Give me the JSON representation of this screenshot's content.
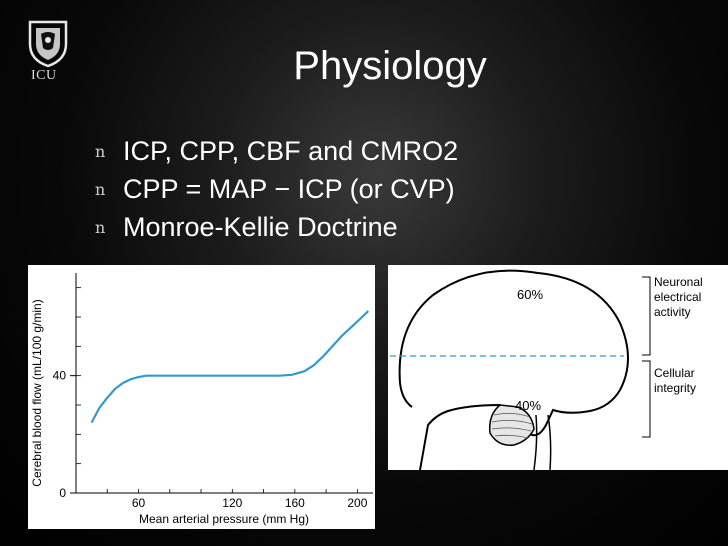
{
  "logo": {
    "text": "ICU"
  },
  "title": "Physiology",
  "bullets": [
    {
      "marker": "n",
      "text": " ICP, CPP, CBF and CMRO2"
    },
    {
      "marker": "n",
      "text": "CPP = MAP − ICP (or CVP)"
    },
    {
      "marker": "n",
      "text": "Monroe-Kellie Doctrine"
    }
  ],
  "chart_data": {
    "type": "line",
    "xlabel": "Mean arterial pressure (mm Hg)",
    "ylabel": "Cerebral blood flow (mL/100 g/min)",
    "x_ticks": [
      60,
      120,
      160,
      200
    ],
    "y_ticks": [
      0,
      40
    ],
    "xlim": [
      20,
      210
    ],
    "ylim": [
      0,
      75
    ],
    "series": [
      {
        "color": "#3399cc",
        "points": [
          [
            30,
            24
          ],
          [
            35,
            29
          ],
          [
            40,
            32.5
          ],
          [
            45,
            35.5
          ],
          [
            50,
            37.5
          ],
          [
            55,
            38.8
          ],
          [
            60,
            39.5
          ],
          [
            65,
            40
          ],
          [
            70,
            40
          ],
          [
            100,
            40
          ],
          [
            130,
            40
          ],
          [
            150,
            40
          ],
          [
            158,
            40.3
          ],
          [
            166,
            41.5
          ],
          [
            172,
            43.5
          ],
          [
            178,
            46.5
          ],
          [
            184,
            50
          ],
          [
            190,
            53.5
          ],
          [
            196,
            56.5
          ],
          [
            202,
            59.5
          ],
          [
            207,
            62
          ]
        ]
      }
    ]
  },
  "brain_diagram": {
    "regions": [
      {
        "label": "60%"
      },
      {
        "label": "40%"
      }
    ],
    "side_labels": [
      {
        "lines": [
          "Neuronal",
          "electrical",
          "activity"
        ]
      },
      {
        "lines": [
          "Cellular",
          "integrity"
        ]
      }
    ]
  }
}
